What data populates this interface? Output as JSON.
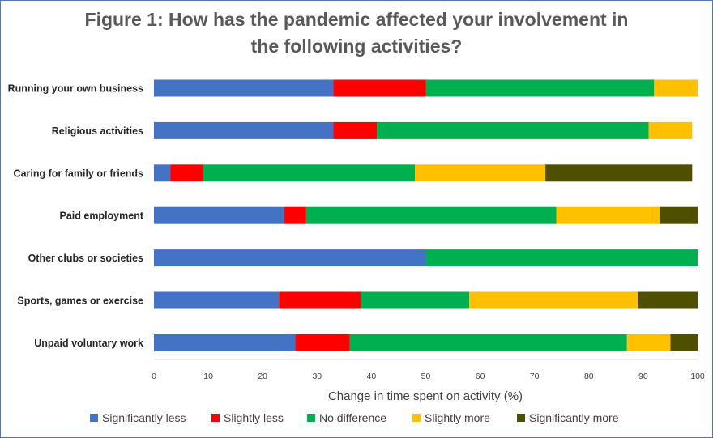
{
  "chart_data": {
    "type": "bar",
    "orientation": "horizontal",
    "stacked": true,
    "title_lines": [
      "Figure 1: How has the pandemic affected your involvement in",
      "the following activities?"
    ],
    "xlabel": "Change in time spent on activity (%)",
    "ylabel": "",
    "xlim": [
      0,
      100
    ],
    "xticks": [
      0,
      10,
      20,
      30,
      40,
      50,
      60,
      70,
      80,
      90,
      100
    ],
    "grid": false,
    "legend_position": "bottom",
    "categories": [
      "Running your own business",
      "Religious activities",
      "Caring for family or friends",
      "Paid employment",
      "Other clubs or societies",
      "Sports, games or exercise",
      "Unpaid voluntary work"
    ],
    "series": [
      {
        "name": "Significantly less",
        "color": "#4472c4",
        "values": [
          33,
          33,
          3,
          24,
          50,
          23,
          26
        ]
      },
      {
        "name": "Slightly less",
        "color": "#ff0000",
        "values": [
          17,
          8,
          6,
          4,
          0,
          15,
          10
        ]
      },
      {
        "name": "No difference",
        "color": "#00b050",
        "values": [
          42,
          50,
          39,
          46,
          50,
          20,
          51
        ]
      },
      {
        "name": "Slightly more",
        "color": "#ffc000",
        "values": [
          8,
          8,
          24,
          19,
          0,
          31,
          8
        ]
      },
      {
        "name": "Significantly more",
        "color": "#4f4f00",
        "values": [
          0,
          0,
          27,
          7,
          0,
          11,
          5
        ]
      }
    ]
  }
}
